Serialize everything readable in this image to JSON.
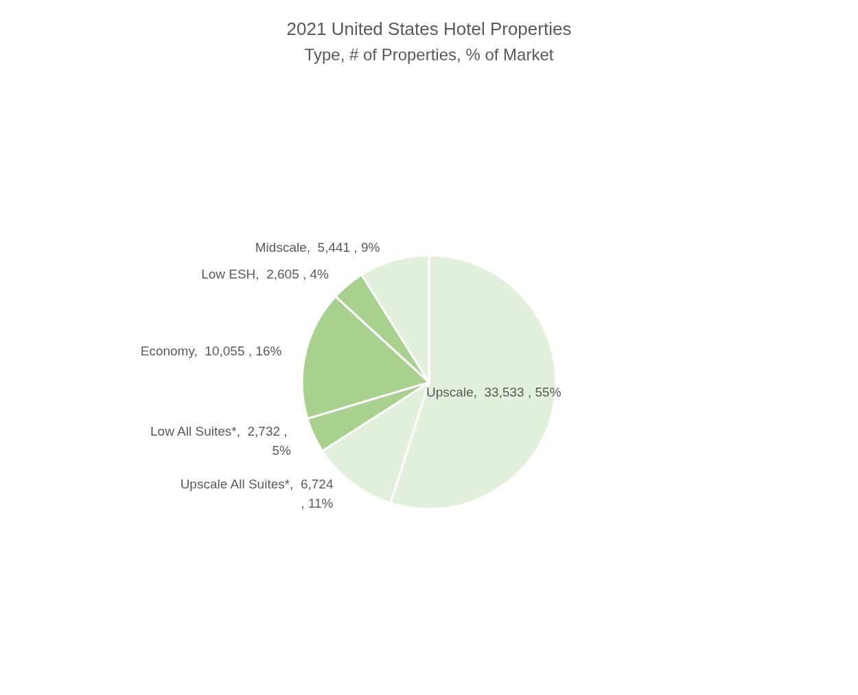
{
  "chart_data": {
    "type": "pie",
    "title": "2021 United States Hotel Properties",
    "subtitle": "Type, # of Properties, % of Market",
    "categories": [
      "Upscale",
      "Upscale All Suites*",
      "Low All Suites*",
      "Economy",
      "Low ESH",
      "Midscale"
    ],
    "values": [
      33533,
      6724,
      2732,
      10055,
      2605,
      5441
    ],
    "colors": [
      "#e2efda",
      "#e2efda",
      "#a9d18e",
      "#a9d18e",
      "#a9d18e",
      "#e2efda"
    ],
    "value_labels": [
      "33,533 , 55%",
      "6,724 , 11%",
      "2,732 , 5%",
      "10,055 , 16%",
      "2,605 , 4%",
      "5,441 , 9%"
    ],
    "legend": false
  }
}
